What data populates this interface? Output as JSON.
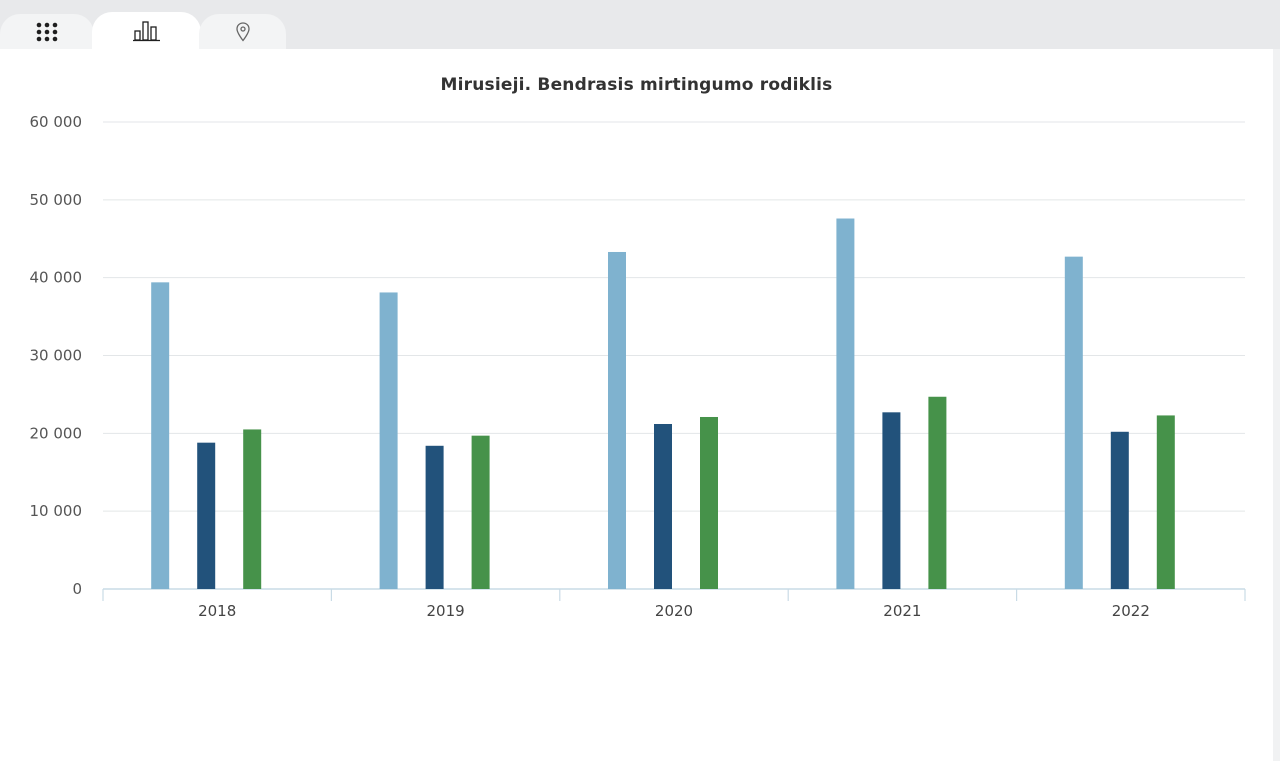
{
  "tabs": [
    {
      "name": "grid",
      "icon": "grid-icon",
      "active": false
    },
    {
      "name": "chart",
      "icon": "bar-chart-icon",
      "active": true
    },
    {
      "name": "map",
      "icon": "map-pin-icon",
      "active": false
    }
  ],
  "chart_data": {
    "type": "bar",
    "title": "Mirusieji. Bendrasis mirtingumo rodiklis",
    "categories": [
      "2018",
      "2019",
      "2020",
      "2021",
      "2022"
    ],
    "series": [
      {
        "color": "#7fb2cf",
        "values": [
          39400,
          38100,
          43300,
          47600,
          42700
        ]
      },
      {
        "color": "#22527b",
        "values": [
          18800,
          18400,
          21200,
          22700,
          20200
        ]
      },
      {
        "color": "#46924a",
        "values": [
          20500,
          19700,
          22100,
          24700,
          22300
        ]
      }
    ],
    "ylim": [
      0,
      60000
    ],
    "yticks": [
      0,
      10000,
      20000,
      30000,
      40000,
      50000,
      60000
    ],
    "ytick_labels": [
      "0",
      "10 000",
      "20 000",
      "30 000",
      "40 000",
      "50 000",
      "60 000"
    ],
    "grid": true,
    "legend": false
  }
}
